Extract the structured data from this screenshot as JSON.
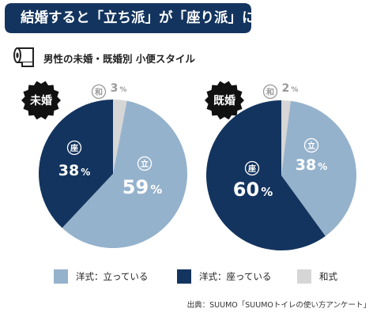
{
  "header": {
    "title": "結婚すると「立ち派」が「座り派」に",
    "subtitle": "男性の未婚・既婚別 小便スタイル",
    "icon": "toilet-paper-icon"
  },
  "colors": {
    "navy": "#13345e",
    "light_blue": "#95b2cc",
    "gray": "#d6d6d6"
  },
  "chart_data": [
    {
      "type": "pie",
      "title": "未婚",
      "slices": [
        {
          "key": "和",
          "label": "和式",
          "value": 3,
          "badge": "和",
          "pct": "3",
          "unit": "%",
          "color": "#d6d6d6"
        },
        {
          "key": "立",
          "label": "洋式：立っている",
          "value": 59,
          "badge": "立",
          "pct": "59",
          "unit": "%",
          "color": "#95b2cc"
        },
        {
          "key": "座",
          "label": "洋式：座っている",
          "value": 38,
          "badge": "座",
          "pct": "38",
          "unit": "%",
          "color": "#13345e"
        }
      ]
    },
    {
      "type": "pie",
      "title": "既婚",
      "slices": [
        {
          "key": "和",
          "label": "和式",
          "value": 2,
          "badge": "和",
          "pct": "2",
          "unit": "%",
          "color": "#d6d6d6"
        },
        {
          "key": "立",
          "label": "洋式：立っている",
          "value": 38,
          "badge": "立",
          "pct": "38",
          "unit": "%",
          "color": "#95b2cc"
        },
        {
          "key": "座",
          "label": "洋式：座っている",
          "value": 60,
          "badge": "座",
          "pct": "60",
          "unit": "%",
          "color": "#13345e"
        }
      ]
    }
  ],
  "legend": {
    "items": [
      {
        "label": "洋式：立っている",
        "color": "#95b2cc"
      },
      {
        "label": "洋式：座っている",
        "color": "#13345e"
      },
      {
        "label": "和式",
        "color": "#d6d6d6"
      }
    ]
  },
  "source": "出典：SUUMO「SUUMOトイレの使い方アンケート」"
}
